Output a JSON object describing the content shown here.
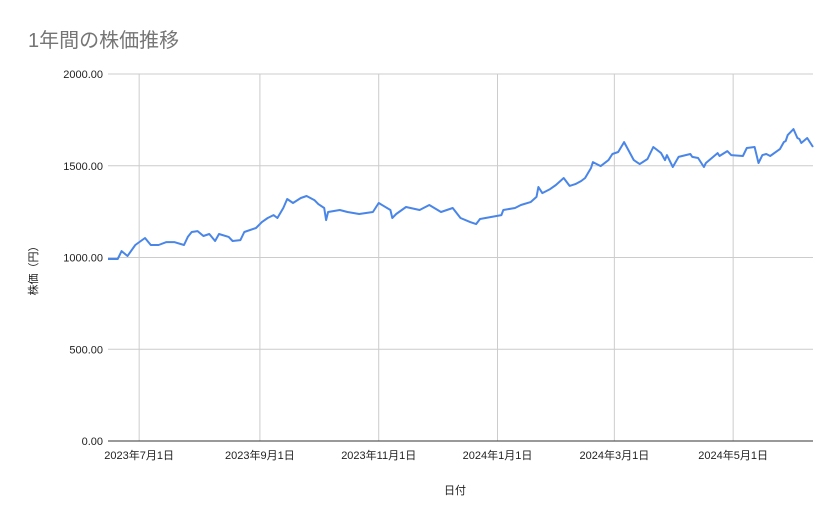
{
  "chart_data": {
    "type": "line",
    "title": "1年間の株価推移",
    "xlabel": "日付",
    "ylabel": "株価（円）",
    "ylim": [
      0,
      2000
    ],
    "xlim": [
      "2023-06-15",
      "2024-06-11"
    ],
    "grid": true,
    "legend": "none",
    "line_color": "#4a86e8",
    "y_ticks": [
      {
        "value": 0,
        "label": "0.00"
      },
      {
        "value": 500,
        "label": "500.00"
      },
      {
        "value": 1000,
        "label": "1000.00"
      },
      {
        "value": 1500,
        "label": "1500.00"
      },
      {
        "value": 2000,
        "label": "2000.00"
      }
    ],
    "x_ticks": [
      {
        "date": "2023-07-01",
        "label": "2023年7月1日"
      },
      {
        "date": "2023-09-01",
        "label": "2023年9月1日"
      },
      {
        "date": "2023-11-01",
        "label": "2023年11月1日"
      },
      {
        "date": "2024-01-01",
        "label": "2024年1月1日"
      },
      {
        "date": "2024-03-01",
        "label": "2024年3月1日"
      },
      {
        "date": "2024-05-01",
        "label": "2024年5月1日"
      }
    ],
    "series": [
      {
        "points": [
          [
            "2023-06-15",
            992
          ],
          [
            "2023-06-20",
            992
          ],
          [
            "2023-06-22",
            1035
          ],
          [
            "2023-06-25",
            1008
          ],
          [
            "2023-06-29",
            1068
          ],
          [
            "2023-07-04",
            1106
          ],
          [
            "2023-07-07",
            1068
          ],
          [
            "2023-07-11",
            1068
          ],
          [
            "2023-07-15",
            1084
          ],
          [
            "2023-07-19",
            1084
          ],
          [
            "2023-07-24",
            1068
          ],
          [
            "2023-07-26",
            1112
          ],
          [
            "2023-07-28",
            1139
          ],
          [
            "2023-07-31",
            1144
          ],
          [
            "2023-08-03",
            1117
          ],
          [
            "2023-08-06",
            1128
          ],
          [
            "2023-08-09",
            1090
          ],
          [
            "2023-08-11",
            1128
          ],
          [
            "2023-08-16",
            1112
          ],
          [
            "2023-08-18",
            1090
          ],
          [
            "2023-08-22",
            1095
          ],
          [
            "2023-08-24",
            1139
          ],
          [
            "2023-08-30",
            1161
          ],
          [
            "2023-09-02",
            1193
          ],
          [
            "2023-09-05",
            1215
          ],
          [
            "2023-09-08",
            1231
          ],
          [
            "2023-09-10",
            1215
          ],
          [
            "2023-09-13",
            1270
          ],
          [
            "2023-09-15",
            1319
          ],
          [
            "2023-09-18",
            1297
          ],
          [
            "2023-09-22",
            1324
          ],
          [
            "2023-09-25",
            1335
          ],
          [
            "2023-09-29",
            1313
          ],
          [
            "2023-10-01",
            1291
          ],
          [
            "2023-10-04",
            1270
          ],
          [
            "2023-10-05",
            1204
          ],
          [
            "2023-10-06",
            1248
          ],
          [
            "2023-10-12",
            1259
          ],
          [
            "2023-10-16",
            1248
          ],
          [
            "2023-10-22",
            1237
          ],
          [
            "2023-10-29",
            1248
          ],
          [
            "2023-11-01",
            1297
          ],
          [
            "2023-11-07",
            1259
          ],
          [
            "2023-11-08",
            1215
          ],
          [
            "2023-11-10",
            1237
          ],
          [
            "2023-11-15",
            1275
          ],
          [
            "2023-11-22",
            1259
          ],
          [
            "2023-11-27",
            1286
          ],
          [
            "2023-12-03",
            1248
          ],
          [
            "2023-12-09",
            1270
          ],
          [
            "2023-12-13",
            1215
          ],
          [
            "2023-12-18",
            1193
          ],
          [
            "2023-12-21",
            1182
          ],
          [
            "2023-12-23",
            1210
          ],
          [
            "2023-12-29",
            1221
          ],
          [
            "2024-01-03",
            1231
          ],
          [
            "2024-01-04",
            1259
          ],
          [
            "2024-01-10",
            1270
          ],
          [
            "2024-01-13",
            1286
          ],
          [
            "2024-01-18",
            1302
          ],
          [
            "2024-01-21",
            1330
          ],
          [
            "2024-01-22",
            1384
          ],
          [
            "2024-01-24",
            1351
          ],
          [
            "2024-01-28",
            1373
          ],
          [
            "2024-01-31",
            1395
          ],
          [
            "2024-02-04",
            1433
          ],
          [
            "2024-02-07",
            1390
          ],
          [
            "2024-02-10",
            1400
          ],
          [
            "2024-02-13",
            1417
          ],
          [
            "2024-02-15",
            1433
          ],
          [
            "2024-02-18",
            1488
          ],
          [
            "2024-02-19",
            1520
          ],
          [
            "2024-02-23",
            1498
          ],
          [
            "2024-02-27",
            1531
          ],
          [
            "2024-02-29",
            1564
          ],
          [
            "2024-03-03",
            1575
          ],
          [
            "2024-03-06",
            1629
          ],
          [
            "2024-03-11",
            1531
          ],
          [
            "2024-03-14",
            1509
          ],
          [
            "2024-03-18",
            1537
          ],
          [
            "2024-03-21",
            1602
          ],
          [
            "2024-03-25",
            1569
          ],
          [
            "2024-03-27",
            1531
          ],
          [
            "2024-03-28",
            1558
          ],
          [
            "2024-03-31",
            1493
          ],
          [
            "2024-04-03",
            1548
          ],
          [
            "2024-04-09",
            1564
          ],
          [
            "2024-04-10",
            1548
          ],
          [
            "2024-04-13",
            1542
          ],
          [
            "2024-04-16",
            1493
          ],
          [
            "2024-04-17",
            1515
          ],
          [
            "2024-04-23",
            1569
          ],
          [
            "2024-04-24",
            1553
          ],
          [
            "2024-04-28",
            1580
          ],
          [
            "2024-04-30",
            1558
          ],
          [
            "2024-05-06",
            1553
          ],
          [
            "2024-05-08",
            1597
          ],
          [
            "2024-05-12",
            1602
          ],
          [
            "2024-05-14",
            1515
          ],
          [
            "2024-05-16",
            1558
          ],
          [
            "2024-05-18",
            1564
          ],
          [
            "2024-05-20",
            1553
          ],
          [
            "2024-05-25",
            1591
          ],
          [
            "2024-05-27",
            1629
          ],
          [
            "2024-05-28",
            1635
          ],
          [
            "2024-05-29",
            1667
          ],
          [
            "2024-06-01",
            1700
          ],
          [
            "2024-06-03",
            1651
          ],
          [
            "2024-06-04",
            1646
          ],
          [
            "2024-06-05",
            1624
          ],
          [
            "2024-06-08",
            1651
          ],
          [
            "2024-06-11",
            1602
          ]
        ]
      }
    ]
  }
}
